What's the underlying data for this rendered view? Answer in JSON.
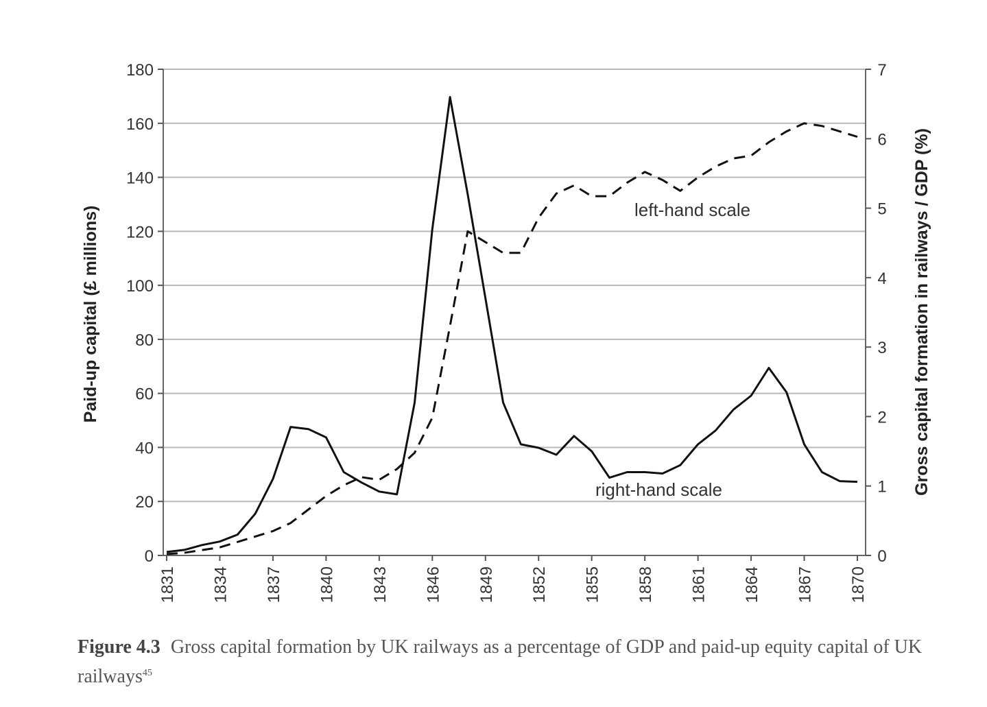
{
  "caption": {
    "label": "Figure 4.3",
    "text": "Gross capital formation by UK railways as a percentage of GDP and paid-up equity capital of UK railways",
    "note_ref": "45"
  },
  "chart_data": {
    "type": "line",
    "x_tick_labels": [
      "1831",
      "1834",
      "1837",
      "1840",
      "1843",
      "1846",
      "1849",
      "1852",
      "1855",
      "1858",
      "1861",
      "1864",
      "1867",
      "1870"
    ],
    "x": [
      1831,
      1832,
      1833,
      1834,
      1835,
      1836,
      1837,
      1838,
      1839,
      1840,
      1841,
      1842,
      1843,
      1844,
      1845,
      1846,
      1847,
      1848,
      1849,
      1850,
      1851,
      1852,
      1853,
      1854,
      1855,
      1856,
      1857,
      1858,
      1859,
      1860,
      1861,
      1862,
      1863,
      1864,
      1865,
      1866,
      1867,
      1868,
      1869,
      1870
    ],
    "xlim": [
      1831,
      1870
    ],
    "ylabel_left": "Paid-up capital (£ millions)",
    "ylabel_right": "Gross capital formation in railways / GDP (%)",
    "ylim_left": [
      0,
      180
    ],
    "ylim_right": [
      0,
      7
    ],
    "yticks_left": [
      "0",
      "20",
      "40",
      "60",
      "80",
      "100",
      "120",
      "140",
      "160",
      "180"
    ],
    "yticks_right": [
      "0",
      "1",
      "2",
      "3",
      "4",
      "5",
      "6",
      "7"
    ],
    "grid": true,
    "series": [
      {
        "style": "dashed",
        "axis": "left",
        "annotation": "left-hand scale",
        "values": [
          0.5,
          1,
          2,
          3,
          5,
          7,
          9,
          12,
          17,
          22,
          26,
          29,
          28,
          32,
          38,
          51,
          85,
          120,
          116,
          112,
          112,
          125,
          134,
          137,
          133,
          133,
          138,
          142,
          139,
          135,
          140,
          144,
          147,
          148,
          153,
          157,
          160,
          159,
          157,
          155
        ]
      },
      {
        "style": "solid",
        "axis": "right",
        "annotation": "right-hand scale",
        "values": [
          0.05,
          0.08,
          0.15,
          0.2,
          0.3,
          0.6,
          1.1,
          1.85,
          1.82,
          1.7,
          1.2,
          1.05,
          0.92,
          0.88,
          2.2,
          4.7,
          6.6,
          5.2,
          3.7,
          2.2,
          1.6,
          1.55,
          1.45,
          1.72,
          1.5,
          1.12,
          1.2,
          1.2,
          1.18,
          1.3,
          1.6,
          1.8,
          2.1,
          2.3,
          2.7,
          2.35,
          1.6,
          1.2,
          1.07,
          1.06
        ]
      }
    ]
  }
}
